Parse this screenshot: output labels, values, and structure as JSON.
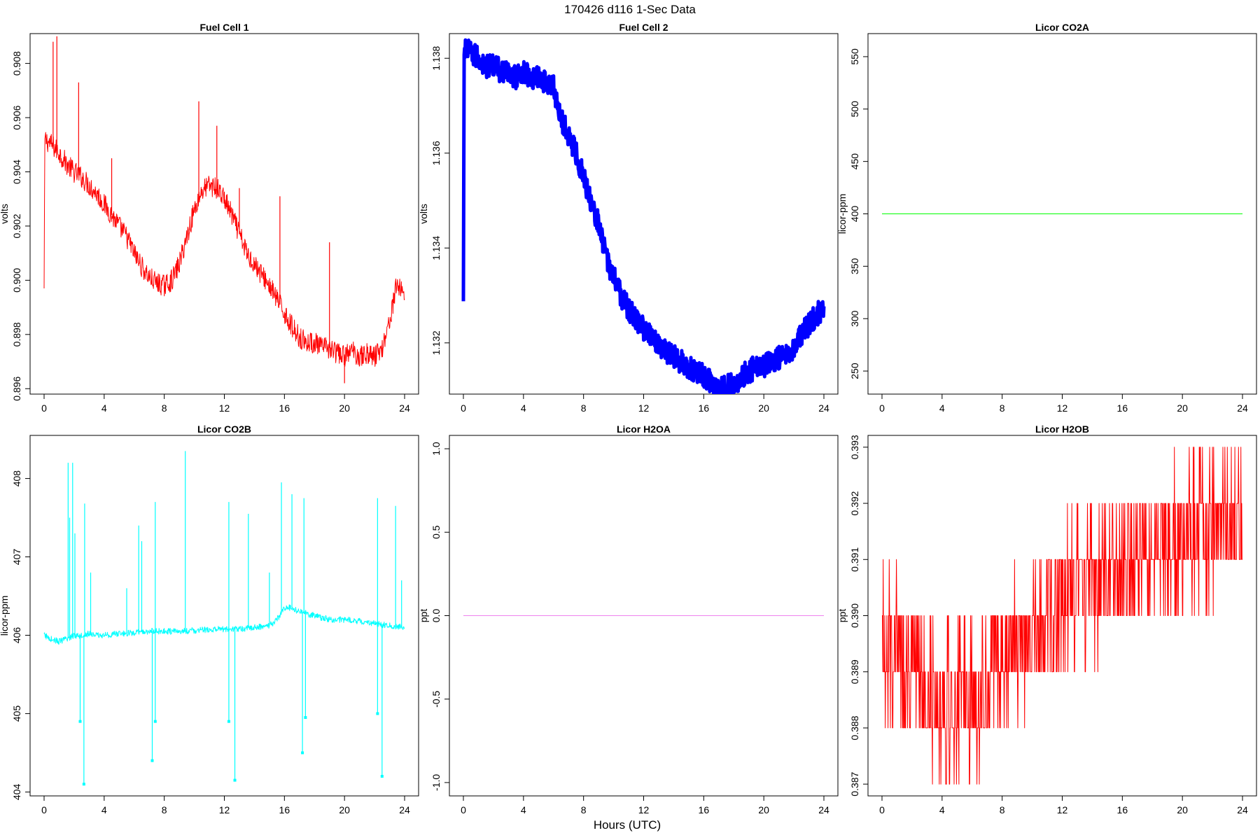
{
  "figure": {
    "title": "170426   d116   1-Sec Data",
    "x_axis_label": "Hours (UTC)"
  },
  "chart_data": [
    {
      "type": "line",
      "title": "Fuel Cell 1",
      "ylabel": "volts",
      "xlabel": "",
      "color": "#ff0000",
      "xlim": [
        0,
        24
      ],
      "ylim": [
        0.8958,
        0.9091
      ],
      "x_ticks": [
        0,
        4,
        8,
        12,
        16,
        20,
        24
      ],
      "y_ticks": [
        0.896,
        0.898,
        0.9,
        0.902,
        0.904,
        0.906,
        0.908
      ],
      "y_tick_labels": [
        "0.896",
        "0.898",
        "0.900",
        "0.902",
        "0.904",
        "0.906",
        "0.908"
      ],
      "series": [
        {
          "x": [
            0,
            0.05,
            0.5,
            1,
            1.5,
            2,
            2.5,
            3,
            3.5,
            4,
            4.5,
            5,
            5.5,
            6,
            6.5,
            7,
            7.5,
            8,
            8.5,
            9,
            9.5,
            10,
            10.5,
            11,
            11.5,
            12,
            12.5,
            13,
            13.5,
            14,
            14.5,
            15,
            15.5,
            16,
            16.5,
            17,
            17.5,
            18,
            18.5,
            19,
            19.5,
            20,
            20.5,
            21,
            21.5,
            22,
            22.5,
            23,
            23.5,
            24
          ],
          "y": [
            0.8996,
            0.9052,
            0.905,
            0.9047,
            0.9043,
            0.904,
            0.9038,
            0.9035,
            0.9032,
            0.9028,
            0.9024,
            0.902,
            0.9016,
            0.901,
            0.9005,
            0.9001,
            0.8999,
            0.8998,
            0.9,
            0.9006,
            0.9016,
            0.9026,
            0.9033,
            0.9035,
            0.9034,
            0.903,
            0.9024,
            0.9017,
            0.901,
            0.9006,
            0.9002,
            0.8998,
            0.8993,
            0.8988,
            0.8983,
            0.8979,
            0.8977,
            0.8977,
            0.8975,
            0.8975,
            0.8973,
            0.8972,
            0.8974,
            0.8972,
            0.8973,
            0.8972,
            0.8975,
            0.8985,
            0.8999,
            0.8995
          ],
          "noise": 0.0004,
          "spikes": [
            [
              0.6,
              0.9088
            ],
            [
              0.85,
              0.909
            ],
            [
              2.3,
              0.9073
            ],
            [
              4.5,
              0.9045
            ],
            [
              10.3,
              0.9066
            ],
            [
              11.5,
              0.9057
            ],
            [
              13.0,
              0.9034
            ],
            [
              15.7,
              0.9031
            ],
            [
              19.0,
              0.9014
            ],
            [
              20.0,
              0.8962
            ]
          ]
        }
      ]
    },
    {
      "type": "line",
      "title": "Fuel Cell 2",
      "ylabel": "volts",
      "xlabel": "",
      "color": "#0000ff",
      "xlim": [
        0,
        24
      ],
      "ylim": [
        1.13092,
        1.13852
      ],
      "x_ticks": [
        0,
        4,
        8,
        12,
        16,
        20,
        24
      ],
      "y_ticks": [
        1.132,
        1.134,
        1.136,
        1.138
      ],
      "y_tick_labels": [
        "1.132",
        "1.134",
        "1.136",
        "1.138"
      ],
      "series": [
        {
          "x": [
            0,
            0.05,
            0.5,
            1,
            1.5,
            2,
            2.5,
            3,
            3.5,
            4,
            4.5,
            5,
            5.5,
            6,
            6.5,
            7,
            7.5,
            8,
            8.5,
            9,
            9.5,
            10,
            10.5,
            11,
            11.5,
            12,
            12.5,
            13,
            13.5,
            14,
            14.5,
            15,
            15.5,
            16,
            16.5,
            17,
            17.5,
            18,
            18.5,
            19,
            19.5,
            20,
            20.5,
            21,
            21.5,
            22,
            22.5,
            23,
            23.5,
            24
          ],
          "y": [
            1.1328,
            1.1382,
            1.1381,
            1.138,
            1.1378,
            1.1379,
            1.1377,
            1.1377,
            1.1376,
            1.1377,
            1.1376,
            1.1376,
            1.1375,
            1.1374,
            1.1367,
            1.1364,
            1.136,
            1.1355,
            1.135,
            1.1345,
            1.1338,
            1.1334,
            1.133,
            1.1327,
            1.1325,
            1.1323,
            1.1321,
            1.132,
            1.1318,
            1.1317,
            1.1316,
            1.1315,
            1.1314,
            1.1313,
            1.1312,
            1.131,
            1.1311,
            1.1311,
            1.1313,
            1.1314,
            1.1315,
            1.1315,
            1.1316,
            1.1317,
            1.1318,
            1.1319,
            1.1322,
            1.1324,
            1.1326,
            1.1327
          ],
          "noise": 0.00025,
          "spikes": []
        }
      ]
    },
    {
      "type": "line",
      "title": "Licor CO2A",
      "ylabel": "licor-ppm",
      "xlabel": "",
      "color": "#00ff00",
      "xlim": [
        0,
        24
      ],
      "ylim": [
        228,
        572
      ],
      "x_ticks": [
        0,
        4,
        8,
        12,
        16,
        20,
        24
      ],
      "y_ticks": [
        250,
        300,
        350,
        400,
        450,
        500,
        550
      ],
      "y_tick_labels": [
        "250",
        "300",
        "350",
        "400",
        "450",
        "500",
        "550"
      ],
      "series": [
        {
          "x": [
            0,
            24
          ],
          "y": [
            400,
            400
          ],
          "noise": 0,
          "spikes": []
        }
      ]
    },
    {
      "type": "line",
      "title": "Licor CO2B",
      "ylabel": "licor-ppm",
      "xlabel": "",
      "color": "#00ffff",
      "xlim": [
        0,
        24
      ],
      "ylim": [
        403.95,
        408.55
      ],
      "x_ticks": [
        0,
        4,
        8,
        12,
        16,
        20,
        24
      ],
      "y_ticks": [
        404,
        405,
        406,
        407,
        408
      ],
      "y_tick_labels": [
        "404",
        "405",
        "406",
        "407",
        "408"
      ],
      "series": [
        {
          "x": [
            0,
            0.5,
            1,
            1.5,
            2,
            2.5,
            3,
            3.5,
            4,
            5,
            6,
            7,
            8,
            9,
            10,
            11,
            12,
            13,
            14,
            15,
            15.5,
            16,
            16.5,
            17,
            18,
            19,
            20,
            21,
            22,
            23,
            24
          ],
          "y": [
            406.0,
            405.95,
            405.92,
            405.95,
            406.0,
            406.0,
            406.02,
            406.0,
            406.0,
            406.02,
            406.03,
            406.05,
            406.05,
            406.05,
            406.06,
            406.07,
            406.08,
            406.08,
            406.1,
            406.12,
            406.2,
            406.35,
            406.35,
            406.3,
            406.25,
            406.2,
            406.2,
            406.18,
            406.15,
            406.12,
            406.1
          ],
          "noise": 0.04,
          "spikes": [
            [
              1.6,
              408.2
            ],
            [
              1.7,
              407.5
            ],
            [
              1.9,
              408.2
            ],
            [
              2.05,
              407.3
            ],
            [
              2.7,
              407.68
            ],
            [
              3.1,
              406.8
            ],
            [
              5.5,
              406.6
            ],
            [
              6.3,
              407.4
            ],
            [
              6.5,
              407.2
            ],
            [
              7.4,
              407.7
            ],
            [
              9.4,
              408.35
            ],
            [
              12.3,
              407.7
            ],
            [
              13.6,
              407.55
            ],
            [
              15.0,
              406.8
            ],
            [
              15.8,
              407.95
            ],
            [
              16.5,
              407.8
            ],
            [
              17.3,
              407.75
            ],
            [
              22.2,
              407.75
            ],
            [
              23.4,
              407.65
            ],
            [
              23.8,
              406.7
            ]
          ],
          "dips": [
            [
              2.4,
              404.9
            ],
            [
              2.65,
              404.1
            ],
            [
              7.2,
              404.4
            ],
            [
              7.4,
              404.9
            ],
            [
              12.3,
              404.9
            ],
            [
              12.7,
              404.15
            ],
            [
              17.2,
              404.5
            ],
            [
              17.4,
              404.95
            ],
            [
              22.2,
              405.0
            ],
            [
              22.5,
              404.2
            ]
          ]
        }
      ]
    },
    {
      "type": "line",
      "title": "Licor H2OA",
      "ylabel": "ppt",
      "xlabel": "",
      "color": "#ee82ee",
      "xlim": [
        0,
        24
      ],
      "ylim": [
        -1.08,
        1.08
      ],
      "x_ticks": [
        0,
        4,
        8,
        12,
        16,
        20,
        24
      ],
      "y_ticks": [
        -1.0,
        -0.5,
        0.0,
        0.5,
        1.0
      ],
      "y_tick_labels": [
        "-1.0",
        "-0.5",
        "0.0",
        "0.5",
        "1.0"
      ],
      "series": [
        {
          "x": [
            0,
            24
          ],
          "y": [
            0,
            0
          ],
          "noise": 0,
          "spikes": []
        }
      ]
    },
    {
      "type": "line",
      "title": "Licor H2OB",
      "ylabel": "ppt",
      "xlabel": "",
      "color": "#ff0000",
      "xlim": [
        0,
        24
      ],
      "ylim": [
        0.38679,
        0.39321
      ],
      "x_ticks": [
        0,
        4,
        8,
        12,
        16,
        20,
        24
      ],
      "y_ticks": [
        0.387,
        0.388,
        0.389,
        0.39,
        0.391,
        0.392,
        0.393
      ],
      "y_tick_labels": [
        "0.387",
        "0.388",
        "0.389",
        "0.390",
        "0.391",
        "0.392",
        "0.393"
      ],
      "series": [
        {
          "x": [
            0,
            1,
            2,
            3,
            4,
            5,
            6,
            7,
            8,
            9,
            10,
            11,
            12,
            13,
            14,
            15,
            16,
            17,
            18,
            19,
            20,
            21,
            22,
            23,
            24
          ],
          "y": [
            0.3895,
            0.3895,
            0.389,
            0.3887,
            0.3885,
            0.3885,
            0.3885,
            0.3887,
            0.3893,
            0.3895,
            0.3897,
            0.39,
            0.3903,
            0.3905,
            0.3905,
            0.3907,
            0.3908,
            0.391,
            0.3912,
            0.3913,
            0.3915,
            0.3915,
            0.3916,
            0.3917,
            0.3917
          ],
          "quantum": 0.001,
          "spread": 0.0012,
          "noise": 0,
          "spikes": []
        }
      ]
    }
  ]
}
